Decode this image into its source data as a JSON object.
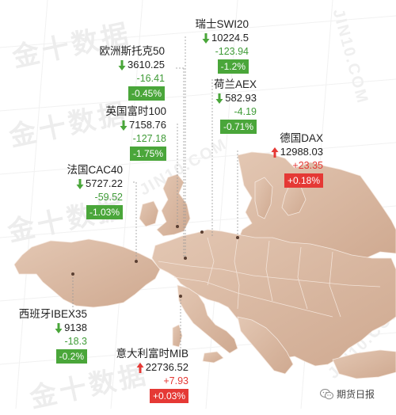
{
  "watermark": {
    "text": "金十数据",
    "latin": "JIN10.COM"
  },
  "brand": {
    "name": "期货日报",
    "icon": "wechat-icon"
  },
  "colors": {
    "down": "#4aa63a",
    "up": "#e53935",
    "map": "#d9b8a2"
  },
  "indices": [
    {
      "id": "swiss",
      "name": "瑞士SWI20",
      "value": "10224.5",
      "change": "-123.94",
      "percent": "-1.2%",
      "direction": "down"
    },
    {
      "id": "eurostoxx",
      "name": "欧洲斯托克50",
      "value": "3610.25",
      "change": "-16.41",
      "percent": "-0.45%",
      "direction": "down"
    },
    {
      "id": "netherlands",
      "name": "荷兰AEX",
      "value": "582.93",
      "change": "-4.19",
      "percent": "-0.71%",
      "direction": "down"
    },
    {
      "id": "uk",
      "name": "英国富时100",
      "value": "7158.76",
      "change": "-127.18",
      "percent": "-1.75%",
      "direction": "down"
    },
    {
      "id": "germany",
      "name": "德国DAX",
      "value": "12988.03",
      "change": "+23.35",
      "percent": "+0.18%",
      "direction": "up"
    },
    {
      "id": "france",
      "name": "法国CAC40",
      "value": "5727.22",
      "change": "-59.52",
      "percent": "-1.03%",
      "direction": "down"
    },
    {
      "id": "spain",
      "name": "西班牙IBEX35",
      "value": "9138",
      "change": "-18.3",
      "percent": "-0.2%",
      "direction": "down"
    },
    {
      "id": "italy",
      "name": "意大利富时MIB",
      "value": "22736.52",
      "change": "+7.93",
      "percent": "+0.03%",
      "direction": "up"
    }
  ]
}
